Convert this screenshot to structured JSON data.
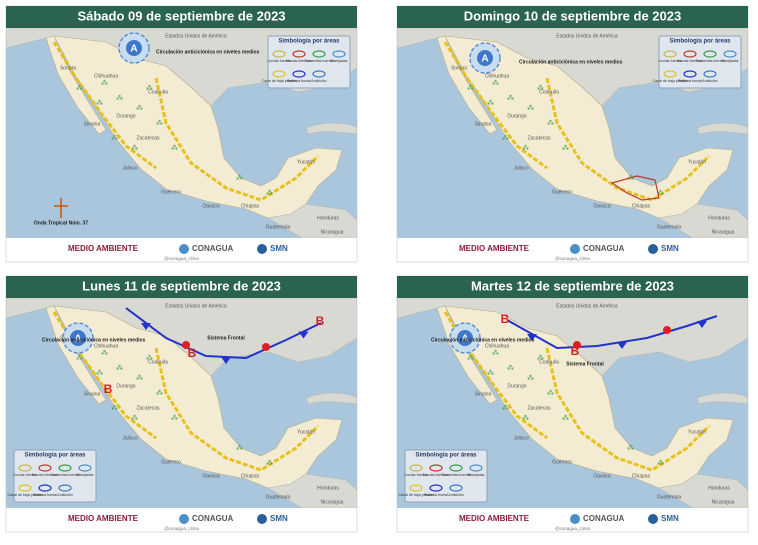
{
  "panels": [
    {
      "title": "Sábado 09 de septiembre de 2023",
      "anticyclone": "A",
      "anticyclone_label": "Circulación anticiclónica en niveles medios",
      "features": [
        "Onda Tropical Núm. 37"
      ],
      "lows": []
    },
    {
      "title": "Domingo 10 de septiembre de 2023",
      "anticyclone": "A",
      "anticyclone_label": "Circulación anticiclónica en niveles medios",
      "features": [],
      "lows": []
    },
    {
      "title": "Lunes 11 de septiembre de 2023",
      "anticyclone": "A",
      "anticyclone_label": "Circulación anticiclónica en niveles medios",
      "features": [
        "Sistema Frontal"
      ],
      "lows": [
        "B",
        "B",
        "B"
      ]
    },
    {
      "title": "Martes 12 de septiembre de 2023",
      "anticyclone": "A",
      "anticyclone_label": "Circulación anticiclónica en niveles medios",
      "features": [
        "Sistema Frontal"
      ],
      "lows": [
        "B",
        "B"
      ]
    }
  ],
  "places": [
    "Estados Unidos de América",
    "Sonora",
    "Chihuahua",
    "Coahuila",
    "Sinaloa",
    "Durango",
    "Zacatecas",
    "Jalisco",
    "Guerrero",
    "Oaxaca",
    "Chiapas",
    "Yucatán",
    "Guatemala",
    "Honduras",
    "Nicaragua"
  ],
  "legend": {
    "title": "Simbología por áreas",
    "items": [
      "Lluvias fuertes",
      "Lluvias intensas",
      "Tormentas fuertes",
      "Marejadas",
      "Canal de baja presión",
      "Sistema frontal",
      "Anticiclón"
    ]
  },
  "footer": {
    "environment": "MEDIO AMBIENTE",
    "conagua": "CONAGUA",
    "smn": "SMN",
    "handle": "@conagua_clima"
  }
}
